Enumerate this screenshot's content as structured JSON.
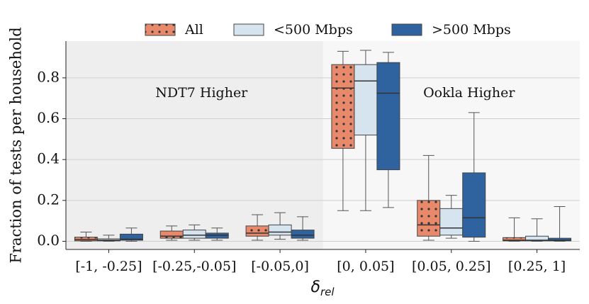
{
  "chart_data": {
    "type": "box",
    "y_label": "Fraction of tests per household",
    "x_label": {
      "base": "δ",
      "sub": "rel"
    },
    "categories": [
      "[-1, -0.25]",
      "[-0.25,-0.05]",
      "[-0.05,0]",
      "[0, 0.05]",
      "[0.05, 0.25]",
      "[0.25, 1]"
    ],
    "annotations": [
      {
        "text": "NDT7 Higher",
        "color": "#1010dd",
        "background": "#eeeeee"
      },
      {
        "text": "Ookla Higher",
        "color": "#e0301e",
        "background": "#f7f7f7"
      }
    ],
    "legend": "top",
    "grid": true,
    "ylim": [
      -0.04,
      0.98
    ],
    "yticks": [
      {
        "value": 0,
        "label": "0.0"
      },
      0.2,
      0.4,
      0.6,
      0.8
    ],
    "series": [
      {
        "name": "All",
        "color": "#e8896b",
        "hatch": "dots",
        "values": [
          {
            "whislo": 0,
            "q1": 0.002,
            "med": 0.008,
            "q3": 0.02,
            "whishi": 0.045
          },
          {
            "whislo": 0.005,
            "q1": 0.015,
            "med": 0.025,
            "q3": 0.05,
            "whishi": 0.075
          },
          {
            "whislo": 0.005,
            "q1": 0.025,
            "med": 0.04,
            "q3": 0.075,
            "whishi": 0.13
          },
          {
            "whislo": 0.15,
            "q1": 0.455,
            "med": 0.75,
            "q3": 0.865,
            "whishi": 0.93
          },
          {
            "whislo": 0.005,
            "q1": 0.025,
            "med": 0.08,
            "q3": 0.2,
            "whishi": 0.42
          },
          {
            "whislo": 0,
            "q1": 0.002,
            "med": 0.005,
            "q3": 0.018,
            "whishi": 0.115
          }
        ]
      },
      {
        "name": "<500 Mbps",
        "color": "#d6e4ef",
        "values": [
          {
            "whislo": 0,
            "q1": 0.002,
            "med": 0.005,
            "q3": 0.012,
            "whishi": 0.03
          },
          {
            "whislo": 0.005,
            "q1": 0.015,
            "med": 0.03,
            "q3": 0.055,
            "whishi": 0.08
          },
          {
            "whislo": 0.01,
            "q1": 0.03,
            "med": 0.045,
            "q3": 0.08,
            "whishi": 0.14
          },
          {
            "whislo": 0.15,
            "q1": 0.52,
            "med": 0.785,
            "q3": 0.865,
            "whishi": 0.935
          },
          {
            "whislo": 0.015,
            "q1": 0.03,
            "med": 0.065,
            "q3": 0.16,
            "whishi": 0.225
          },
          {
            "whislo": 0,
            "q1": 0.002,
            "med": 0.005,
            "q3": 0.025,
            "whishi": 0.11
          }
        ]
      },
      {
        "name": ">500 Mbps",
        "color": "#2e63a0",
        "values": [
          {
            "whislo": 0,
            "q1": 0.005,
            "med": 0.01,
            "q3": 0.035,
            "whishi": 0.065
          },
          {
            "whislo": 0.005,
            "q1": 0.015,
            "med": 0.03,
            "q3": 0.04,
            "whishi": 0.065
          },
          {
            "whislo": 0.005,
            "q1": 0.015,
            "med": 0.03,
            "q3": 0.055,
            "whishi": 0.12
          },
          {
            "whislo": 0.165,
            "q1": 0.35,
            "med": 0.725,
            "q3": 0.875,
            "whishi": 0.925
          },
          {
            "whislo": 0,
            "q1": 0.02,
            "med": 0.115,
            "q3": 0.335,
            "whishi": 0.63
          },
          {
            "whislo": 0,
            "q1": 0.002,
            "med": 0.005,
            "q3": 0.015,
            "whishi": 0.17
          }
        ]
      }
    ]
  }
}
